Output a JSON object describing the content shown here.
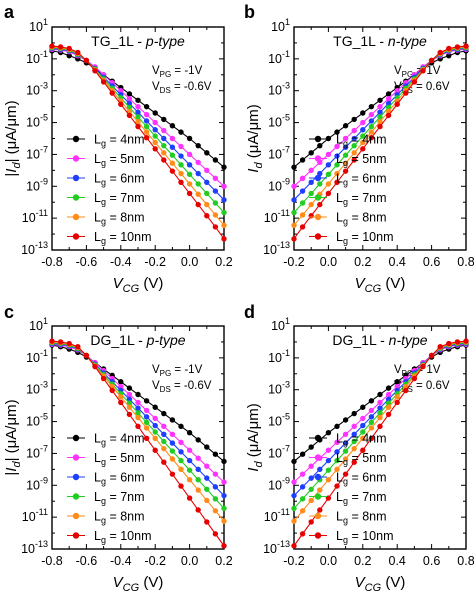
{
  "figure": {
    "panels": [
      {
        "letter": "a",
        "title_prefix": "TG_1L - ",
        "title_type": "p-type",
        "bias1_sym": "V",
        "bias1_sub": "PG",
        "bias1_val": " = -1V",
        "bias2_sym": "V",
        "bias2_sub": "DS",
        "bias2_val": " = -0.6V"
      },
      {
        "letter": "b",
        "title_prefix": "TG_1L - ",
        "title_type": "n-type",
        "bias1_sym": "V",
        "bias1_sub": "PG",
        "bias1_val": " = 1V",
        "bias2_sym": "V",
        "bias2_sub": "DS",
        "bias2_val": " = 0.6V"
      },
      {
        "letter": "c",
        "title_prefix": "DG_1L - ",
        "title_type": "p-type",
        "bias1_sym": "V",
        "bias1_sub": "PG",
        "bias1_val": " = -1V",
        "bias2_sym": "V",
        "bias2_sub": "DS",
        "bias2_val": " = -0.6V"
      },
      {
        "letter": "d",
        "title_prefix": "DG_1L - ",
        "title_type": "n-type",
        "bias1_sym": "V",
        "bias1_sub": "PG",
        "bias1_val": " = 1V",
        "bias2_sym": "V",
        "bias2_sub": "DS",
        "bias2_val": " = 0.6V"
      }
    ]
  },
  "chart_data": [
    {
      "type": "line",
      "title": "TG_1L - p-type",
      "xlabel": "V_CG (V)",
      "ylabel": "|I_d| (μA/μm)",
      "xlim": [
        -0.8,
        0.2
      ],
      "ylim": [
        -13,
        1
      ],
      "y_scale": "log",
      "x_ticks": [
        "-0.8",
        "-0.6",
        "-0.4",
        "-0.2",
        "0.0",
        "0.2"
      ],
      "y_ticks": [
        "10^-13",
        "10^-11",
        "10^-9",
        "10^-7",
        "10^-5",
        "10^-3",
        "10^-1",
        "10^1"
      ],
      "legend_placement": "bottom-right",
      "x": [
        -0.8,
        -0.75,
        -0.7,
        -0.65,
        -0.6,
        -0.55,
        -0.5,
        -0.45,
        -0.4,
        -0.35,
        -0.3,
        -0.25,
        -0.2,
        -0.15,
        -0.1,
        -0.05,
        0,
        0.05,
        0.1,
        0.15,
        0.2
      ],
      "series": [
        {
          "name": "L_g = 4nm",
          "color": "#000000",
          "log10_values": [
            -0.5,
            -0.6,
            -0.8,
            -1.0,
            -1.25,
            -1.6,
            -2.0,
            -2.4,
            -2.8,
            -3.2,
            -3.6,
            -4.0,
            -4.4,
            -4.8,
            -5.2,
            -5.6,
            -6.0,
            -6.45,
            -6.9,
            -7.35,
            -7.8
          ]
        },
        {
          "name": "L_g = 5nm",
          "color": "#ff33ff",
          "log10_values": [
            -0.4,
            -0.45,
            -0.55,
            -0.8,
            -1.1,
            -1.5,
            -2.0,
            -2.5,
            -3.0,
            -3.5,
            -4.0,
            -4.5,
            -5.0,
            -5.5,
            -6.0,
            -6.5,
            -7.0,
            -7.5,
            -8.0,
            -8.5,
            -9.0
          ]
        },
        {
          "name": "L_g = 6nm",
          "color": "#1f3fff",
          "log10_values": [
            -0.35,
            -0.4,
            -0.5,
            -0.75,
            -1.1,
            -1.6,
            -2.15,
            -2.7,
            -3.25,
            -3.8,
            -4.35,
            -4.9,
            -5.45,
            -6.0,
            -6.55,
            -7.1,
            -7.65,
            -8.2,
            -8.75,
            -9.3,
            -9.85
          ]
        },
        {
          "name": "L_g = 7nm",
          "color": "#22cc22",
          "log10_values": [
            -0.3,
            -0.35,
            -0.45,
            -0.7,
            -1.1,
            -1.65,
            -2.25,
            -2.85,
            -3.45,
            -4.05,
            -4.65,
            -5.25,
            -5.85,
            -6.45,
            -7.05,
            -7.65,
            -8.25,
            -8.85,
            -9.45,
            -10.05,
            -10.65
          ]
        },
        {
          "name": "L_g = 8nm",
          "color": "#ff8c1a",
          "log10_values": [
            -0.25,
            -0.3,
            -0.4,
            -0.65,
            -1.1,
            -1.7,
            -2.35,
            -3.0,
            -3.65,
            -4.3,
            -4.95,
            -5.6,
            -6.25,
            -6.9,
            -7.55,
            -8.2,
            -8.85,
            -9.5,
            -10.15,
            -10.8,
            -11.45
          ]
        },
        {
          "name": "L_g = 10nm",
          "color": "#e60000",
          "log10_values": [
            -0.2,
            -0.25,
            -0.35,
            -0.6,
            -1.1,
            -1.75,
            -2.45,
            -3.15,
            -3.85,
            -4.55,
            -5.25,
            -5.95,
            -6.65,
            -7.35,
            -8.05,
            -8.75,
            -9.45,
            -10.15,
            -10.85,
            -11.55,
            -12.3
          ]
        }
      ]
    },
    {
      "type": "line",
      "title": "TG_1L - n-type",
      "xlabel": "V_CG (V)",
      "ylabel": "I_d (μA/μm)",
      "xlim": [
        -0.2,
        0.8
      ],
      "ylim": [
        -13,
        1
      ],
      "y_scale": "log",
      "x_ticks": [
        "-0.2",
        "0.0",
        "0.2",
        "0.4",
        "0.6",
        "0.8"
      ],
      "y_ticks": [
        "10^-13",
        "10^-11",
        "10^-9",
        "10^-7",
        "10^-5",
        "10^-3",
        "10^-1",
        "10^1"
      ],
      "legend_placement": "bottom-right",
      "x": [
        -0.2,
        -0.15,
        -0.1,
        -0.05,
        0,
        0.05,
        0.1,
        0.15,
        0.2,
        0.25,
        0.3,
        0.35,
        0.4,
        0.45,
        0.5,
        0.55,
        0.6,
        0.65,
        0.7,
        0.75,
        0.8
      ],
      "series": [
        {
          "name": "L_g = 4nm",
          "color": "#000000",
          "log10_values": [
            -7.8,
            -7.35,
            -6.9,
            -6.45,
            -6.0,
            -5.6,
            -5.2,
            -4.8,
            -4.4,
            -4.0,
            -3.6,
            -3.2,
            -2.8,
            -2.4,
            -2.0,
            -1.6,
            -1.25,
            -1.0,
            -0.8,
            -0.6,
            -0.5
          ]
        },
        {
          "name": "L_g = 5nm",
          "color": "#ff33ff",
          "log10_values": [
            -9.0,
            -8.5,
            -8.0,
            -7.5,
            -7.0,
            -6.5,
            -6.0,
            -5.5,
            -5.0,
            -4.5,
            -4.0,
            -3.5,
            -3.0,
            -2.5,
            -2.0,
            -1.5,
            -1.1,
            -0.8,
            -0.55,
            -0.45,
            -0.4
          ]
        },
        {
          "name": "L_g = 6nm",
          "color": "#1f3fff",
          "log10_values": [
            -9.85,
            -9.3,
            -8.75,
            -8.2,
            -7.65,
            -7.1,
            -6.55,
            -6.0,
            -5.45,
            -4.9,
            -4.35,
            -3.8,
            -3.25,
            -2.7,
            -2.15,
            -1.6,
            -1.1,
            -0.75,
            -0.5,
            -0.4,
            -0.35
          ]
        },
        {
          "name": "L_g = 7nm",
          "color": "#22cc22",
          "log10_values": [
            -10.65,
            -10.05,
            -9.45,
            -8.85,
            -8.25,
            -7.65,
            -7.05,
            -6.45,
            -5.85,
            -5.25,
            -4.65,
            -4.05,
            -3.45,
            -2.85,
            -2.25,
            -1.65,
            -1.1,
            -0.7,
            -0.45,
            -0.35,
            -0.3
          ]
        },
        {
          "name": "L_g = 8nm",
          "color": "#ff8c1a",
          "log10_values": [
            -11.45,
            -10.8,
            -10.15,
            -9.5,
            -8.85,
            -8.2,
            -7.55,
            -6.9,
            -6.25,
            -5.6,
            -4.95,
            -4.3,
            -3.65,
            -3.0,
            -2.35,
            -1.7,
            -1.1,
            -0.65,
            -0.4,
            -0.3,
            -0.25
          ]
        },
        {
          "name": "L_g = 10nm",
          "color": "#e60000",
          "log10_values": [
            -12.3,
            -11.55,
            -10.85,
            -10.15,
            -9.45,
            -8.75,
            -8.05,
            -7.35,
            -6.65,
            -5.95,
            -5.25,
            -4.55,
            -3.85,
            -3.15,
            -2.45,
            -1.75,
            -1.1,
            -0.6,
            -0.35,
            -0.25,
            -0.2
          ]
        }
      ]
    },
    {
      "type": "line",
      "title": "DG_1L - p-type",
      "xlabel": "V_CG (V)",
      "ylabel": "|I_d| (μA/μm)",
      "xlim": [
        -0.8,
        0.2
      ],
      "ylim": [
        -13,
        1
      ],
      "y_scale": "log",
      "x_ticks": [
        "-0.8",
        "-0.6",
        "-0.4",
        "-0.2",
        "0.0",
        "0.2"
      ],
      "y_ticks": [
        "10^-13",
        "10^-11",
        "10^-9",
        "10^-7",
        "10^-5",
        "10^-3",
        "10^-1",
        "10^1"
      ],
      "legend_placement": "bottom-right",
      "x": [
        -0.8,
        -0.75,
        -0.7,
        -0.65,
        -0.6,
        -0.55,
        -0.5,
        -0.45,
        -0.4,
        -0.35,
        -0.3,
        -0.25,
        -0.2,
        -0.15,
        -0.1,
        -0.05,
        0,
        0.05,
        0.1,
        0.15,
        0.2
      ],
      "series": [
        {
          "name": "L_g = 4nm",
          "color": "#000000",
          "log10_values": [
            -0.2,
            -0.3,
            -0.45,
            -0.65,
            -0.95,
            -1.3,
            -1.7,
            -2.1,
            -2.5,
            -2.9,
            -3.3,
            -3.7,
            -4.1,
            -4.5,
            -4.9,
            -5.3,
            -5.7,
            -6.15,
            -6.6,
            -7.05,
            -7.5
          ]
        },
        {
          "name": "L_g = 5nm",
          "color": "#ff33ff",
          "log10_values": [
            -0.15,
            -0.2,
            -0.3,
            -0.5,
            -0.85,
            -1.3,
            -1.8,
            -2.3,
            -2.8,
            -3.3,
            -3.8,
            -4.3,
            -4.8,
            -5.3,
            -5.8,
            -6.3,
            -6.8,
            -7.3,
            -7.8,
            -8.3,
            -8.8
          ]
        },
        {
          "name": "L_g = 6nm",
          "color": "#1f3fff",
          "log10_values": [
            -0.1,
            -0.15,
            -0.25,
            -0.45,
            -0.85,
            -1.4,
            -1.95,
            -2.5,
            -3.05,
            -3.6,
            -4.15,
            -4.7,
            -5.25,
            -5.8,
            -6.35,
            -6.9,
            -7.45,
            -8.0,
            -8.55,
            -9.1,
            -9.65
          ]
        },
        {
          "name": "L_g = 7nm",
          "color": "#22cc22",
          "log10_values": [
            -0.05,
            -0.1,
            -0.2,
            -0.4,
            -0.85,
            -1.45,
            -2.05,
            -2.65,
            -3.25,
            -3.85,
            -4.45,
            -5.05,
            -5.65,
            -6.25,
            -6.85,
            -7.45,
            -8.05,
            -8.65,
            -9.25,
            -9.85,
            -10.45
          ]
        },
        {
          "name": "L_g = 8nm",
          "color": "#ff8c1a",
          "log10_values": [
            0.0,
            -0.05,
            -0.15,
            -0.35,
            -0.85,
            -1.5,
            -2.15,
            -2.8,
            -3.45,
            -4.1,
            -4.75,
            -5.4,
            -6.05,
            -6.7,
            -7.35,
            -8.0,
            -8.65,
            -9.3,
            -9.95,
            -10.6,
            -11.25
          ]
        },
        {
          "name": "L_g = 10nm",
          "color": "#e60000",
          "log10_values": [
            0.05,
            0.0,
            -0.1,
            -0.3,
            -0.85,
            -1.55,
            -2.3,
            -3.05,
            -3.8,
            -4.55,
            -5.3,
            -6.05,
            -6.8,
            -7.55,
            -8.3,
            -9.05,
            -9.8,
            -10.55,
            -11.3,
            -12.05,
            -12.8
          ]
        }
      ]
    },
    {
      "type": "line",
      "title": "DG_1L - n-type",
      "xlabel": "V_CG (V)",
      "ylabel": "I_d (μA/μm)",
      "xlim": [
        -0.2,
        0.8
      ],
      "ylim": [
        -13,
        1
      ],
      "y_scale": "log",
      "x_ticks": [
        "-0.2",
        "0.0",
        "0.2",
        "0.4",
        "0.6",
        "0.8"
      ],
      "y_ticks": [
        "10^-13",
        "10^-11",
        "10^-9",
        "10^-7",
        "10^-5",
        "10^-3",
        "10^-1",
        "10^1"
      ],
      "legend_placement": "bottom-right",
      "x": [
        -0.2,
        -0.15,
        -0.1,
        -0.05,
        0,
        0.05,
        0.1,
        0.15,
        0.2,
        0.25,
        0.3,
        0.35,
        0.4,
        0.45,
        0.5,
        0.55,
        0.6,
        0.65,
        0.7,
        0.75,
        0.8
      ],
      "series": [
        {
          "name": "L_g = 4nm",
          "color": "#000000",
          "log10_values": [
            -7.5,
            -7.05,
            -6.6,
            -6.15,
            -5.7,
            -5.3,
            -4.9,
            -4.5,
            -4.1,
            -3.7,
            -3.3,
            -2.9,
            -2.5,
            -2.1,
            -1.7,
            -1.3,
            -0.95,
            -0.65,
            -0.45,
            -0.3,
            -0.2
          ]
        },
        {
          "name": "L_g = 5nm",
          "color": "#ff33ff",
          "log10_values": [
            -8.8,
            -8.3,
            -7.8,
            -7.3,
            -6.8,
            -6.3,
            -5.8,
            -5.3,
            -4.8,
            -4.3,
            -3.8,
            -3.3,
            -2.8,
            -2.3,
            -1.8,
            -1.3,
            -0.85,
            -0.5,
            -0.3,
            -0.2,
            -0.15
          ]
        },
        {
          "name": "L_g = 6nm",
          "color": "#1f3fff",
          "log10_values": [
            -9.65,
            -9.1,
            -8.55,
            -8.0,
            -7.45,
            -6.9,
            -6.35,
            -5.8,
            -5.25,
            -4.7,
            -4.15,
            -3.6,
            -3.05,
            -2.5,
            -1.95,
            -1.4,
            -0.85,
            -0.45,
            -0.25,
            -0.15,
            -0.1
          ]
        },
        {
          "name": "L_g = 7nm",
          "color": "#22cc22",
          "log10_values": [
            -10.45,
            -9.85,
            -9.25,
            -8.65,
            -8.05,
            -7.45,
            -6.85,
            -6.25,
            -5.65,
            -5.05,
            -4.45,
            -3.85,
            -3.25,
            -2.65,
            -2.05,
            -1.45,
            -0.85,
            -0.4,
            -0.2,
            -0.1,
            -0.05
          ]
        },
        {
          "name": "L_g = 8nm",
          "color": "#ff8c1a",
          "log10_values": [
            -11.25,
            -10.6,
            -9.95,
            -9.3,
            -8.65,
            -8.0,
            -7.35,
            -6.7,
            -6.05,
            -5.4,
            -4.75,
            -4.1,
            -3.45,
            -2.8,
            -2.15,
            -1.5,
            -0.85,
            -0.35,
            -0.15,
            -0.05,
            0.0
          ]
        },
        {
          "name": "L_g = 10nm",
          "color": "#e60000",
          "log10_values": [
            -12.8,
            -12.05,
            -11.3,
            -10.55,
            -9.8,
            -9.05,
            -8.3,
            -7.55,
            -6.8,
            -6.05,
            -5.3,
            -4.55,
            -3.8,
            -3.05,
            -2.3,
            -1.55,
            -0.85,
            -0.3,
            -0.1,
            0.0,
            0.05
          ]
        }
      ]
    }
  ]
}
